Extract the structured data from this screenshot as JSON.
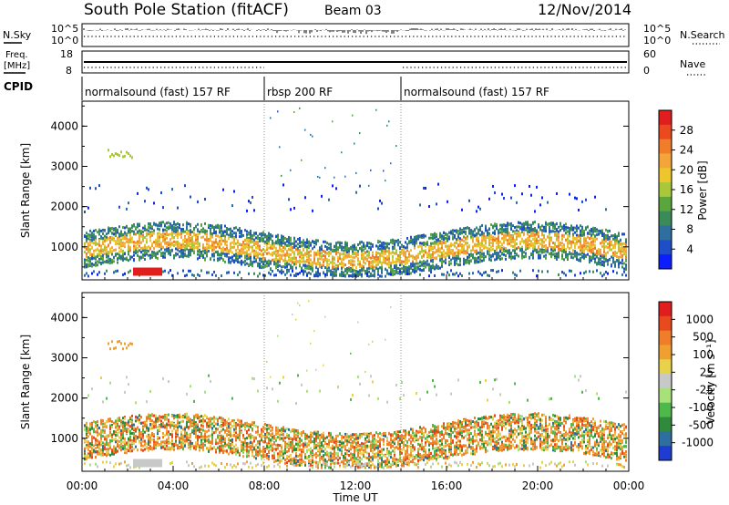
{
  "header": {
    "station": "South Pole Station (fitACF)",
    "beam": "Beam 03",
    "date": "12/Nov/2014"
  },
  "chart_data": [
    {
      "panel": "nsky-nsearch",
      "type": "line",
      "left_label": "N.Sky",
      "right_label": "N.Search",
      "left_ticks": [
        "10^5",
        "10^0"
      ],
      "right_ticks": [
        "10^5",
        "10^0"
      ],
      "x_range_hours": [
        0,
        24
      ]
    },
    {
      "panel": "freq-nave",
      "type": "line",
      "left_label_lines": [
        "Freq.",
        "[MHz]"
      ],
      "right_label": "Nave",
      "left_ticks": [
        18,
        8
      ],
      "right_ticks": [
        60,
        0
      ],
      "x_range_hours": [
        0,
        24
      ]
    },
    {
      "panel": "cpid",
      "type": "table",
      "label": "CPID",
      "segments": [
        {
          "start_hour": 0,
          "end_hour": 8,
          "label": "normalsound (fast) 157 RF"
        },
        {
          "start_hour": 8,
          "end_hour": 14,
          "label": "rbsp 200 RF"
        },
        {
          "start_hour": 14,
          "end_hour": 24,
          "label": "normalsound (fast) 157 RF"
        }
      ]
    },
    {
      "panel": "power",
      "type": "heatmap",
      "ylabel": "Slant Range [km]",
      "xlabel": "",
      "yticks": [
        1000,
        2000,
        3000,
        4000
      ],
      "ylim": [
        180,
        4620
      ],
      "xlim": [
        0,
        24
      ],
      "colorbar": {
        "label": "Power [dB]",
        "ticks": [
          4,
          8,
          12,
          16,
          20,
          24,
          28
        ],
        "colors": [
          "#0a1eff",
          "#1f4fc8",
          "#2e6fa0",
          "#3a8a5a",
          "#5aa53c",
          "#a8c83a",
          "#ecc62b",
          "#f4a53a",
          "#ef7d2a",
          "#ea4a1e",
          "#e01e1e"
        ]
      }
    },
    {
      "panel": "velocity",
      "type": "heatmap",
      "ylabel": "Slant Range [km]",
      "xlabel": "Time UT",
      "yticks": [
        1000,
        2000,
        3000,
        4000
      ],
      "ylim": [
        180,
        4620
      ],
      "xlim": [
        0,
        24
      ],
      "xticks": [
        "00:00",
        "04:00",
        "08:00",
        "12:00",
        "16:00",
        "20:00",
        "00:00"
      ],
      "colorbar": {
        "label": "Velocity [m s⁻¹]",
        "ticks": [
          "1000",
          "500",
          "100",
          "25",
          "-25",
          "-100",
          "-500",
          "-1000"
        ],
        "colors": [
          "#1e3cd2",
          "#2e6fa0",
          "#2f8a3c",
          "#4fb84a",
          "#a8e07a",
          "#c8c8c8",
          "#e8d24a",
          "#f0a030",
          "#ef7d2a",
          "#e84a1e",
          "#e01e1e"
        ]
      }
    }
  ]
}
